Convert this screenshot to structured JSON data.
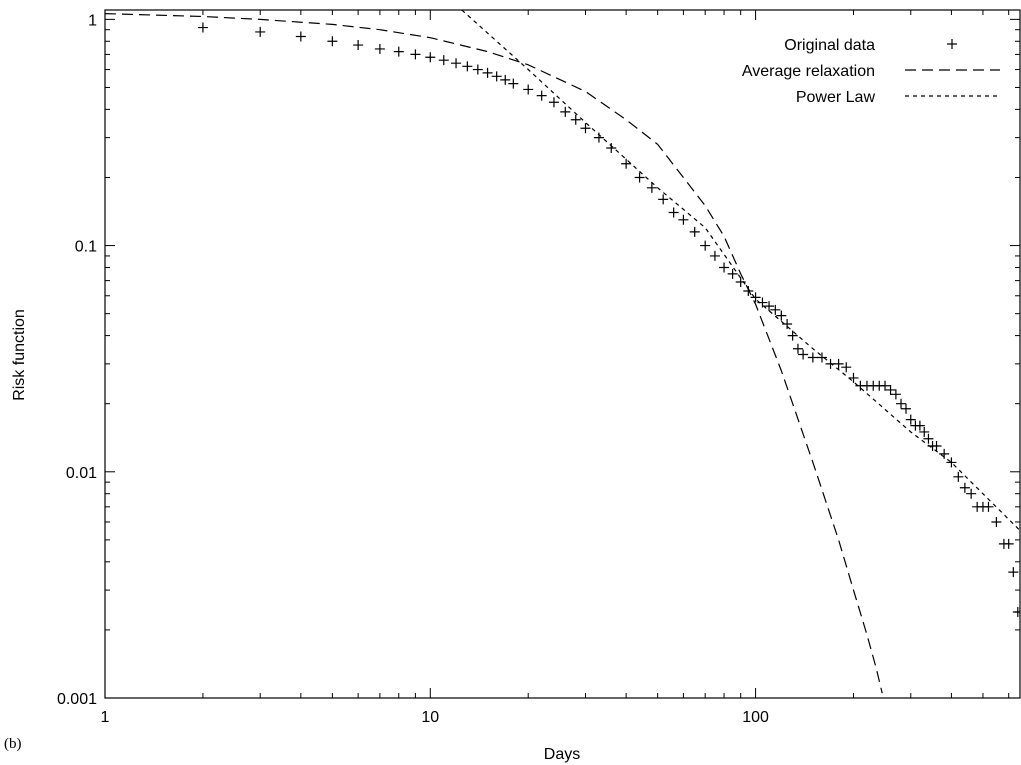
{
  "panel_label": "(b)",
  "chart_data": {
    "type": "scatter",
    "xlabel": "Days",
    "ylabel": "Risk function",
    "x_scale": "log",
    "y_scale": "log",
    "xlim": [
      1,
      650
    ],
    "ylim": [
      0.001,
      1.1
    ],
    "x_ticks": [
      1,
      10,
      100
    ],
    "x_tick_labels": [
      "1",
      "10",
      "100"
    ],
    "y_ticks": [
      0.001,
      0.01,
      0.1,
      1
    ],
    "y_tick_labels": [
      "0.001",
      "0.01",
      "0.1",
      "1"
    ],
    "grid": false,
    "legend_position": "top-right",
    "series": [
      {
        "name": "Original data",
        "style": "plus-markers",
        "color": "#000000",
        "points": [
          [
            2,
            0.92
          ],
          [
            3,
            0.88
          ],
          [
            4,
            0.84
          ],
          [
            5,
            0.8
          ],
          [
            6,
            0.77
          ],
          [
            7,
            0.74
          ],
          [
            8,
            0.72
          ],
          [
            9,
            0.7
          ],
          [
            10,
            0.68
          ],
          [
            11,
            0.66
          ],
          [
            12,
            0.64
          ],
          [
            13,
            0.62
          ],
          [
            14,
            0.6
          ],
          [
            15,
            0.58
          ],
          [
            16,
            0.56
          ],
          [
            17,
            0.54
          ],
          [
            18,
            0.52
          ],
          [
            20,
            0.49
          ],
          [
            22,
            0.46
          ],
          [
            24,
            0.43
          ],
          [
            26,
            0.39
          ],
          [
            28,
            0.36
          ],
          [
            30,
            0.33
          ],
          [
            33,
            0.3
          ],
          [
            36,
            0.27
          ],
          [
            40,
            0.23
          ],
          [
            44,
            0.2
          ],
          [
            48,
            0.18
          ],
          [
            52,
            0.16
          ],
          [
            56,
            0.14
          ],
          [
            60,
            0.13
          ],
          [
            65,
            0.115
          ],
          [
            70,
            0.1
          ],
          [
            75,
            0.09
          ],
          [
            80,
            0.08
          ],
          [
            85,
            0.075
          ],
          [
            90,
            0.069
          ],
          [
            95,
            0.063
          ],
          [
            100,
            0.059
          ],
          [
            105,
            0.056
          ],
          [
            110,
            0.054
          ],
          [
            115,
            0.052
          ],
          [
            120,
            0.049
          ],
          [
            125,
            0.045
          ],
          [
            130,
            0.04
          ],
          [
            135,
            0.035
          ],
          [
            140,
            0.033
          ],
          [
            150,
            0.032
          ],
          [
            160,
            0.032
          ],
          [
            170,
            0.03
          ],
          [
            180,
            0.03
          ],
          [
            190,
            0.029
          ],
          [
            200,
            0.026
          ],
          [
            210,
            0.024
          ],
          [
            220,
            0.024
          ],
          [
            230,
            0.024
          ],
          [
            240,
            0.024
          ],
          [
            250,
            0.024
          ],
          [
            260,
            0.023
          ],
          [
            270,
            0.022
          ],
          [
            280,
            0.02
          ],
          [
            290,
            0.019
          ],
          [
            300,
            0.017
          ],
          [
            310,
            0.016
          ],
          [
            320,
            0.016
          ],
          [
            330,
            0.015
          ],
          [
            340,
            0.014
          ],
          [
            350,
            0.013
          ],
          [
            360,
            0.013
          ],
          [
            380,
            0.012
          ],
          [
            400,
            0.011
          ],
          [
            420,
            0.0095
          ],
          [
            440,
            0.0085
          ],
          [
            460,
            0.008
          ],
          [
            480,
            0.007
          ],
          [
            500,
            0.007
          ],
          [
            520,
            0.007
          ],
          [
            550,
            0.006
          ],
          [
            580,
            0.0048
          ],
          [
            600,
            0.0048
          ],
          [
            620,
            0.0036
          ],
          [
            640,
            0.0024
          ],
          [
            650,
            0.0024
          ]
        ]
      },
      {
        "name": "Average relaxation",
        "style": "long-dash",
        "color": "#000000",
        "points": [
          [
            1,
            1.06
          ],
          [
            2,
            1.03
          ],
          [
            3,
            1.0
          ],
          [
            5,
            0.95
          ],
          [
            7,
            0.9
          ],
          [
            10,
            0.83
          ],
          [
            15,
            0.72
          ],
          [
            20,
            0.63
          ],
          [
            30,
            0.48
          ],
          [
            40,
            0.36
          ],
          [
            50,
            0.28
          ],
          [
            60,
            0.2
          ],
          [
            70,
            0.15
          ],
          [
            80,
            0.11
          ],
          [
            90,
            0.075
          ],
          [
            100,
            0.055
          ],
          [
            120,
            0.028
          ],
          [
            150,
            0.011
          ],
          [
            180,
            0.005
          ],
          [
            200,
            0.003
          ],
          [
            220,
            0.0019
          ],
          [
            235,
            0.00135
          ],
          [
            245,
            0.00105
          ]
        ]
      },
      {
        "name": "Power Law",
        "style": "short-dash",
        "color": "#000000",
        "points": [
          [
            12.5,
            1.1
          ],
          [
            20,
            0.6
          ],
          [
            30,
            0.35
          ],
          [
            50,
            0.18
          ],
          [
            70,
            0.12
          ],
          [
            100,
            0.058
          ],
          [
            150,
            0.035
          ],
          [
            200,
            0.025
          ],
          [
            300,
            0.015
          ],
          [
            400,
            0.011
          ],
          [
            500,
            0.008
          ],
          [
            650,
            0.0055
          ]
        ]
      }
    ]
  }
}
